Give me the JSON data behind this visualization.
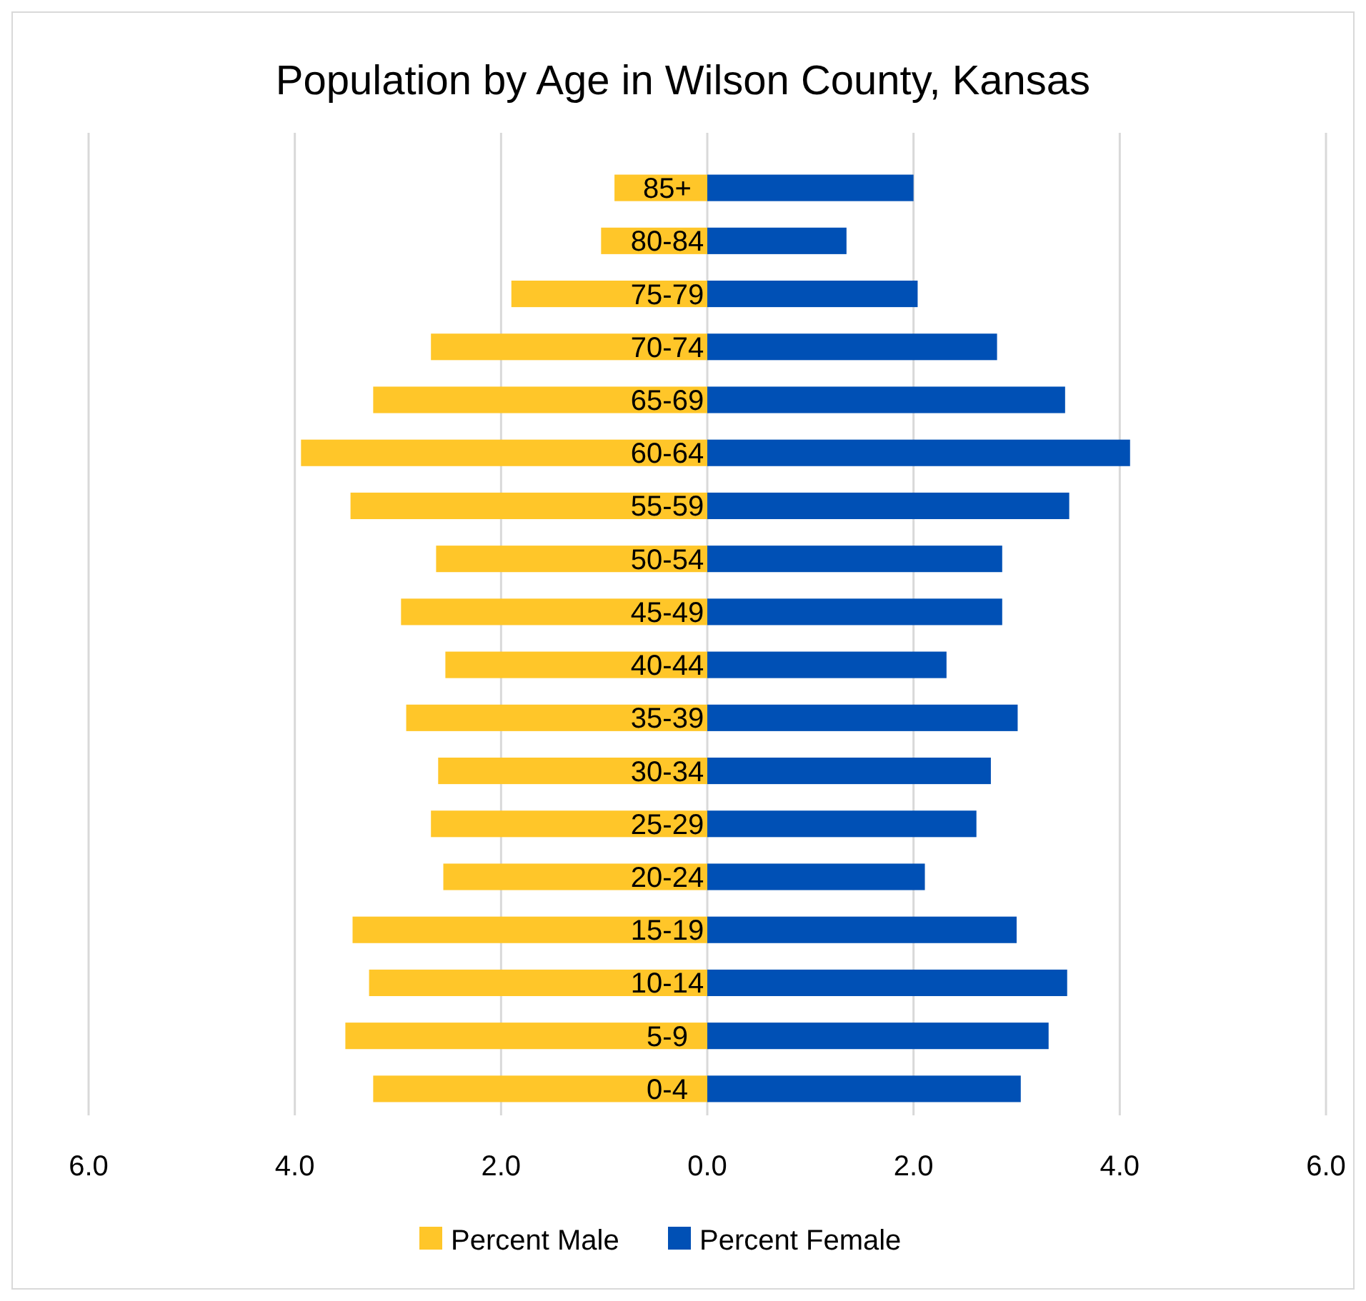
{
  "chart_data": {
    "type": "bar",
    "title": "Population by Age in Wilson County, Kansas",
    "orientation": "horizontal",
    "stacked": true,
    "categories": [
      "85+",
      "80-84",
      "75-79",
      "70-74",
      "65-69",
      "60-64",
      "55-59",
      "50-54",
      "45-49",
      "40-44",
      "35-39",
      "30-34",
      "25-29",
      "20-24",
      "15-19",
      "10-14",
      "5-9",
      "0-4"
    ],
    "series": [
      {
        "name": "Percent Male",
        "color": "#ffc629",
        "values": [
          -0.9,
          -1.03,
          -1.9,
          -2.68,
          -3.24,
          -3.94,
          -3.46,
          -2.63,
          -2.97,
          -2.54,
          -2.92,
          -2.61,
          -2.68,
          -2.56,
          -3.44,
          -3.28,
          -3.51,
          -3.24
        ]
      },
      {
        "name": "Percent Female",
        "color": "#0050b5",
        "values": [
          2.0,
          1.35,
          2.04,
          2.81,
          3.47,
          4.1,
          3.51,
          2.86,
          2.86,
          2.32,
          3.01,
          2.75,
          2.61,
          2.11,
          3.0,
          3.49,
          3.31,
          3.04
        ]
      }
    ],
    "xlim": [
      -6,
      6
    ],
    "xticks": [
      {
        "value": -6,
        "label": "6.0"
      },
      {
        "value": -4,
        "label": "4.0"
      },
      {
        "value": -2,
        "label": "2.0"
      },
      {
        "value": 0,
        "label": "0.0"
      },
      {
        "value": 2,
        "label": "2.0"
      },
      {
        "value": 4,
        "label": "4.0"
      },
      {
        "value": 6,
        "label": "6.0"
      }
    ],
    "grid": "x",
    "legend": "bottom"
  }
}
